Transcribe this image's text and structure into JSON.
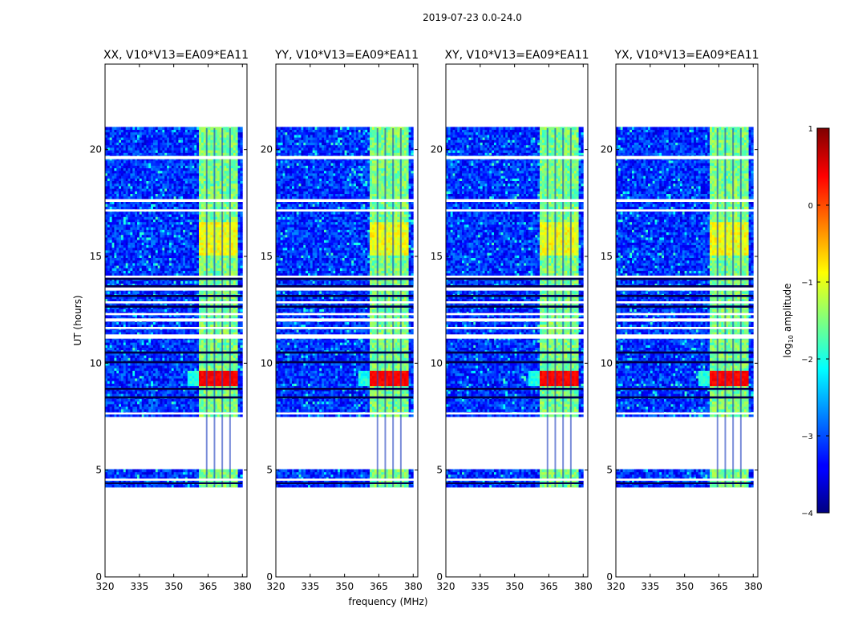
{
  "figure": {
    "suptitle": "2019-07-23 0.0-24.0"
  },
  "chart_data": {
    "type": "heatmap",
    "title": "2019-07-23 0.0-24.0",
    "xlabel": "frequency (MHz)",
    "ylabel": "UT (hours)",
    "xlim": [
      320,
      382
    ],
    "ylim": [
      0,
      24
    ],
    "xticks": [
      320,
      335,
      350,
      365,
      380
    ],
    "yticks": [
      0,
      5,
      10,
      15,
      20
    ],
    "panels": [
      {
        "title": "XX, V10*V13=EA09*EA11",
        "pol": "XX"
      },
      {
        "title": "YY, V10*V13=EA09*EA11",
        "pol": "YY"
      },
      {
        "title": "XY, V10*V13=EA09*EA11",
        "pol": "XY"
      },
      {
        "title": "YX, V10*V13=EA09*EA11",
        "pol": "YX"
      }
    ],
    "data_time_ranges_hours": [
      [
        4.2,
        5.0
      ],
      [
        7.5,
        21.0
      ]
    ],
    "strong_band_mhz": [
      361,
      378
    ],
    "flare_time_hours": [
      8.9,
      9.6
    ],
    "colorbar": {
      "label": "log10 amplitude",
      "min": -4,
      "max": 1,
      "ticks": [
        1,
        0,
        -1,
        -2,
        -3,
        -4
      ],
      "colormap": "jet"
    }
  }
}
